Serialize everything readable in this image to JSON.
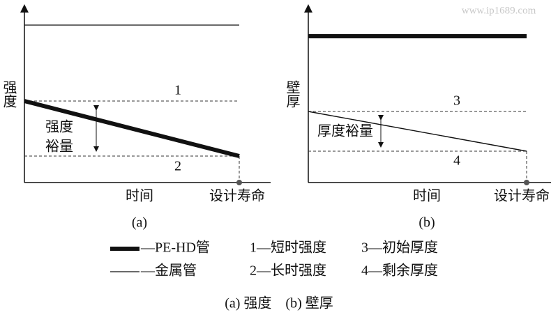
{
  "watermark": "www.ip1689.com",
  "panels": [
    {
      "y_label": "强度",
      "x_label": "时间",
      "end_label": "设计寿命",
      "line_labels": [
        "1",
        "2"
      ],
      "margin_label": [
        "强度",
        "裕量"
      ],
      "caption": "(a)"
    },
    {
      "y_label": "壁厚",
      "x_label": "时间",
      "end_label": "设计寿命",
      "line_labels": [
        "3",
        "4"
      ],
      "margin_label": [
        "厚度裕量"
      ],
      "caption": "(b)"
    }
  ],
  "legend": {
    "rows": [
      [
        "—PE-HD管",
        "1—短时强度",
        "3—初始厚度"
      ],
      [
        "—金属管",
        "2—长时强度",
        "4—剩余厚度"
      ]
    ]
  },
  "caption": "(a) 强度　(b) 壁厚"
}
